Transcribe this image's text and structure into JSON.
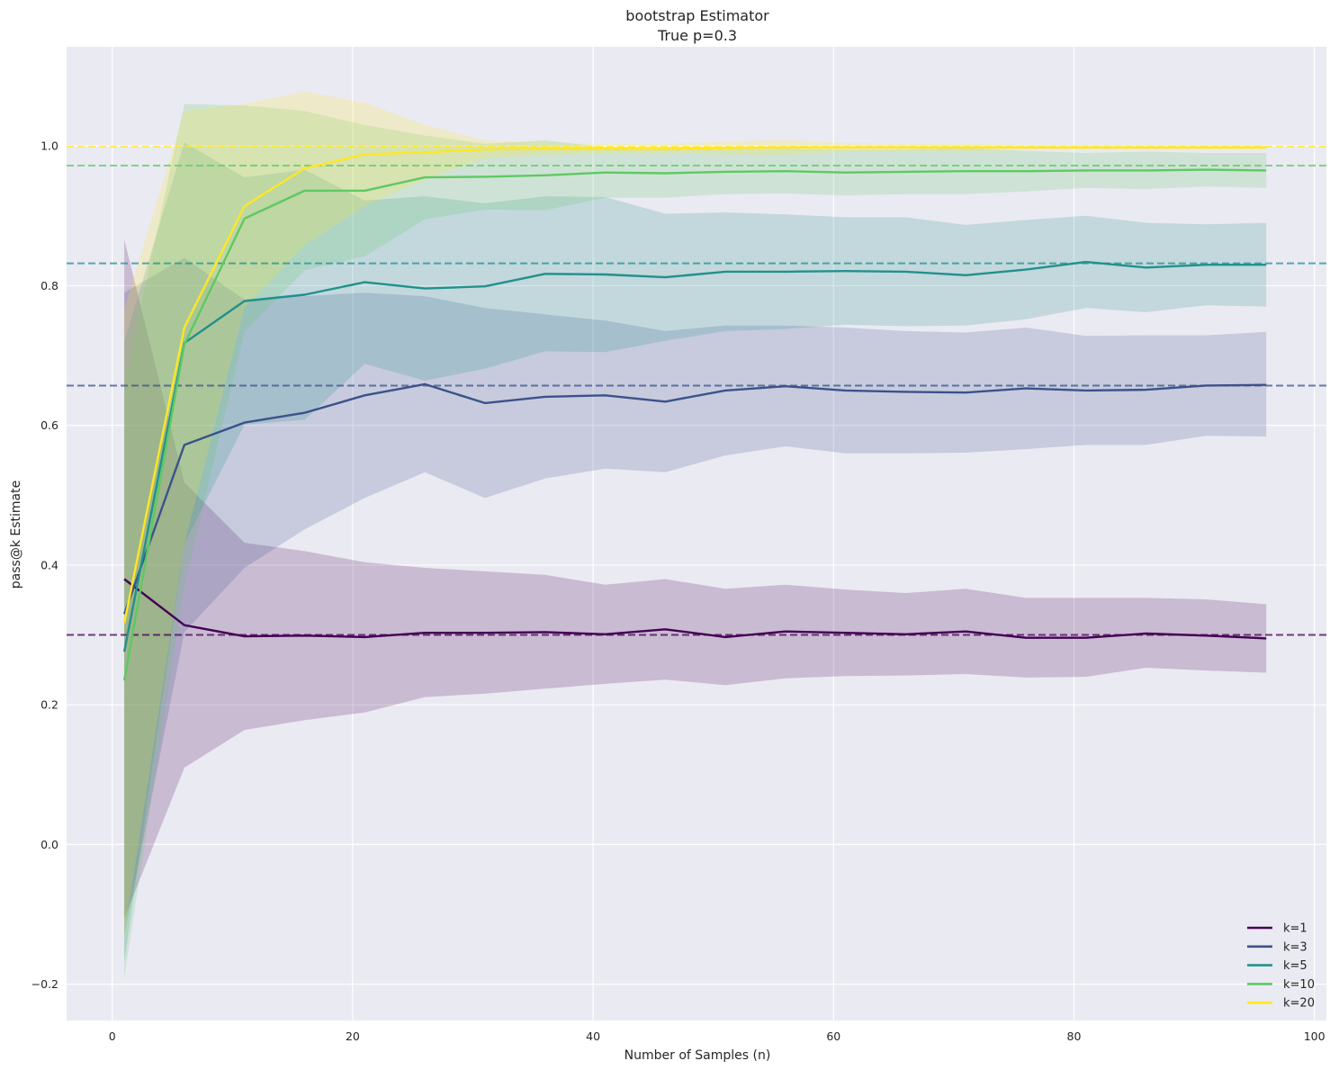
{
  "chart_data": {
    "type": "line",
    "title": "bootstrap Estimator",
    "subtitle": "True p=0.3",
    "xlabel": "Number of Samples (n)",
    "ylabel": "pass@k Estimate",
    "xlim": [
      -3.8,
      101
    ],
    "ylim": [
      -0.252,
      1.142
    ],
    "xticks": [
      0,
      20,
      40,
      60,
      80,
      100
    ],
    "yticks": [
      -0.2,
      0.0,
      0.2,
      0.4,
      0.6,
      0.8,
      1.0
    ],
    "grid": true,
    "legend_position": "bottom-right",
    "x": [
      1,
      6,
      11,
      16,
      21,
      26,
      31,
      36,
      41,
      46,
      51,
      56,
      61,
      66,
      71,
      76,
      81,
      86,
      91,
      96
    ],
    "series": [
      {
        "name": "k=1",
        "color": "#440154",
        "true_value": 0.3,
        "values": [
          0.38,
          0.314,
          0.298,
          0.299,
          0.297,
          0.303,
          0.303,
          0.304,
          0.301,
          0.308,
          0.297,
          0.305,
          0.303,
          0.301,
          0.305,
          0.296,
          0.296,
          0.302,
          0.299,
          0.295
        ],
        "upper": [
          0.866,
          0.518,
          0.432,
          0.42,
          0.404,
          0.396,
          0.391,
          0.386,
          0.372,
          0.38,
          0.366,
          0.372,
          0.365,
          0.36,
          0.366,
          0.353,
          0.353,
          0.353,
          0.351,
          0.344
        ],
        "lower": [
          -0.106,
          0.11,
          0.164,
          0.178,
          0.189,
          0.211,
          0.216,
          0.223,
          0.23,
          0.236,
          0.228,
          0.238,
          0.241,
          0.242,
          0.244,
          0.239,
          0.24,
          0.253,
          0.249,
          0.246
        ]
      },
      {
        "name": "k=3",
        "color": "#3b528b",
        "true_value": 0.657,
        "values": [
          0.33,
          0.572,
          0.604,
          0.618,
          0.643,
          0.659,
          0.632,
          0.641,
          0.643,
          0.634,
          0.65,
          0.656,
          0.65,
          0.648,
          0.647,
          0.653,
          0.65,
          0.651,
          0.657,
          0.658
        ],
        "upper": [
          0.79,
          0.84,
          0.78,
          0.785,
          0.79,
          0.785,
          0.768,
          0.759,
          0.75,
          0.735,
          0.743,
          0.743,
          0.74,
          0.735,
          0.733,
          0.74,
          0.728,
          0.729,
          0.729,
          0.734
        ],
        "lower": [
          -0.13,
          0.304,
          0.396,
          0.451,
          0.496,
          0.533,
          0.496,
          0.524,
          0.538,
          0.533,
          0.557,
          0.57,
          0.56,
          0.56,
          0.561,
          0.566,
          0.572,
          0.572,
          0.585,
          0.584
        ]
      },
      {
        "name": "k=5",
        "color": "#21918c",
        "true_value": 0.832,
        "values": [
          0.276,
          0.718,
          0.778,
          0.787,
          0.805,
          0.796,
          0.799,
          0.817,
          0.816,
          0.812,
          0.82,
          0.82,
          0.821,
          0.82,
          0.815,
          0.823,
          0.834,
          0.826,
          0.83,
          0.83
        ],
        "upper": [
          0.72,
          1.005,
          0.955,
          0.966,
          0.922,
          0.928,
          0.918,
          0.928,
          0.927,
          0.903,
          0.905,
          0.902,
          0.898,
          0.898,
          0.887,
          0.894,
          0.9,
          0.89,
          0.888,
          0.89
        ],
        "lower": [
          -0.168,
          0.431,
          0.601,
          0.608,
          0.688,
          0.664,
          0.681,
          0.706,
          0.705,
          0.721,
          0.735,
          0.738,
          0.744,
          0.742,
          0.743,
          0.752,
          0.768,
          0.762,
          0.772,
          0.77
        ]
      },
      {
        "name": "k=10",
        "color": "#5ec962",
        "true_value": 0.972,
        "values": [
          0.235,
          0.716,
          0.896,
          0.936,
          0.936,
          0.955,
          0.956,
          0.958,
          0.962,
          0.961,
          0.963,
          0.964,
          0.962,
          0.963,
          0.964,
          0.964,
          0.965,
          0.965,
          0.966,
          0.965
        ],
        "upper": [
          0.66,
          1.06,
          1.058,
          1.05,
          1.03,
          1.015,
          1.003,
          1.008,
          0.998,
          0.996,
          0.995,
          0.996,
          0.995,
          0.995,
          0.997,
          0.993,
          0.99,
          0.992,
          0.99,
          0.99
        ],
        "lower": [
          -0.19,
          0.372,
          0.734,
          0.822,
          0.842,
          0.895,
          0.909,
          0.908,
          0.926,
          0.926,
          0.931,
          0.932,
          0.929,
          0.931,
          0.931,
          0.935,
          0.94,
          0.938,
          0.942,
          0.94
        ]
      },
      {
        "name": "k=20",
        "color": "#fde725",
        "true_value": 0.999,
        "values": [
          0.317,
          0.74,
          0.914,
          0.968,
          0.988,
          0.991,
          0.995,
          0.996,
          0.996,
          0.996,
          0.997,
          0.998,
          0.998,
          0.998,
          0.998,
          0.998,
          0.998,
          0.998,
          0.998,
          0.998
        ],
        "upper": [
          0.766,
          1.05,
          1.06,
          1.078,
          1.062,
          1.03,
          1.008,
          1.005,
          1.003,
          1.003,
          1.006,
          1.009,
          1.004,
          1.003,
          1.003,
          1.002,
          1.002,
          1.002,
          1.002,
          1.002
        ],
        "lower": [
          -0.132,
          0.43,
          0.768,
          0.858,
          0.914,
          0.952,
          0.982,
          0.987,
          0.989,
          0.989,
          0.988,
          0.987,
          0.992,
          0.993,
          0.993,
          0.994,
          0.994,
          0.994,
          0.994,
          0.994
        ]
      }
    ]
  }
}
